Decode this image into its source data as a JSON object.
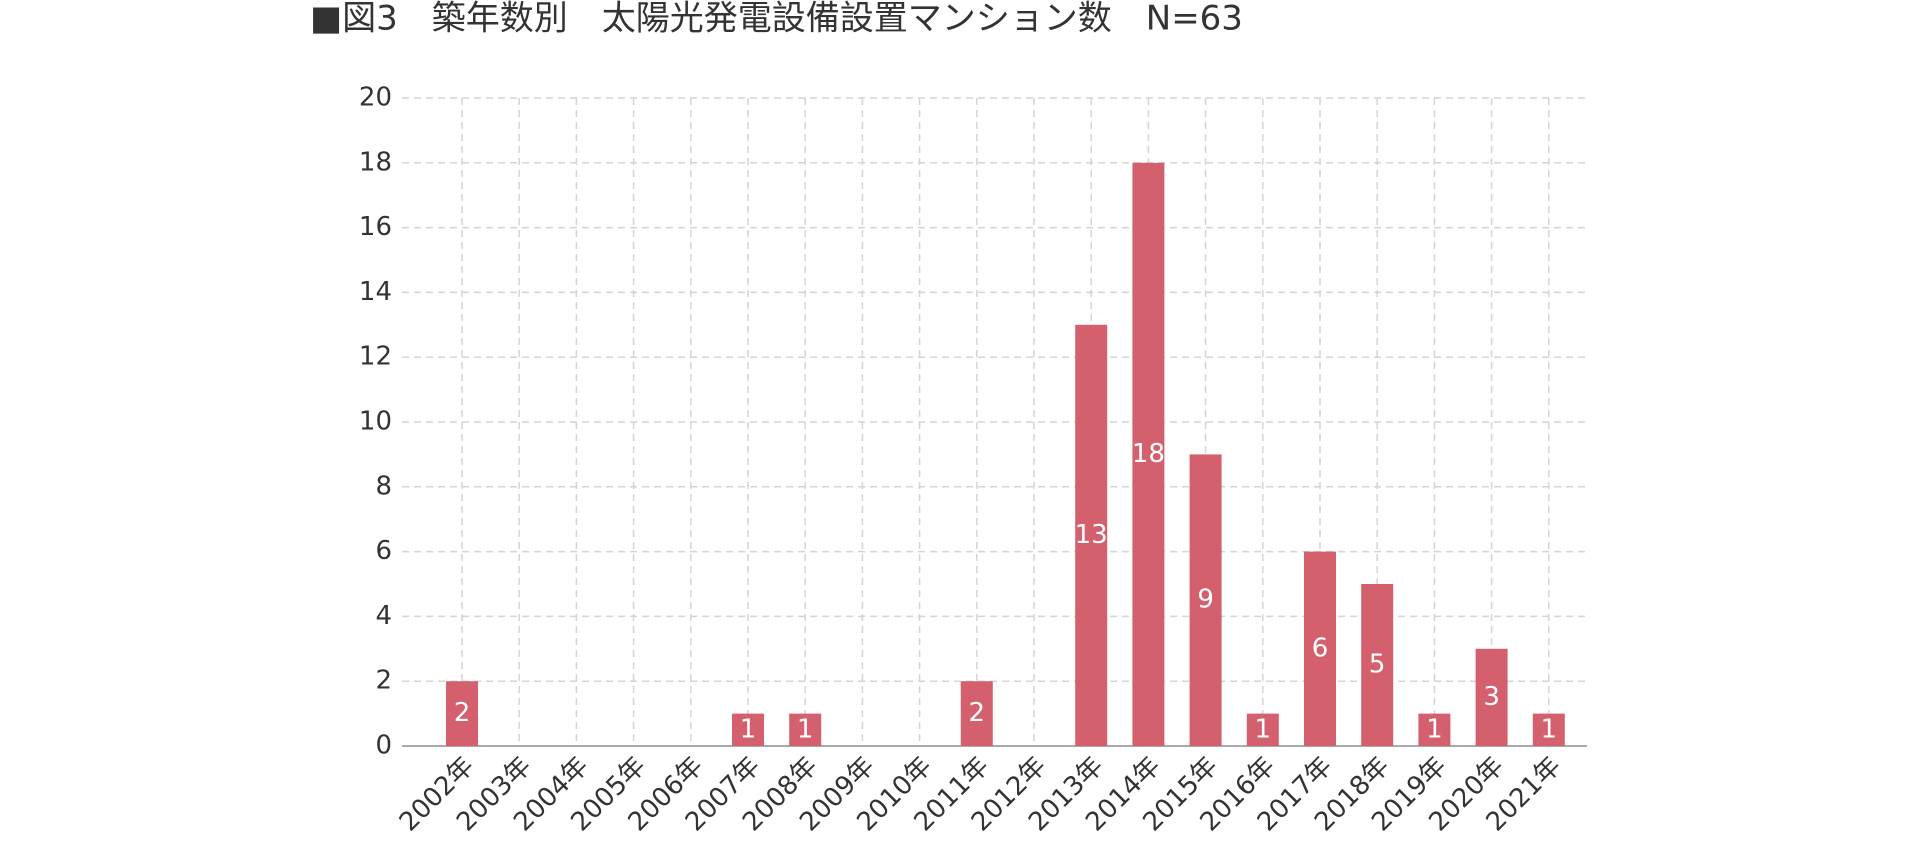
{
  "chart_data": {
    "type": "bar",
    "title": "■図3　築年数別　太陽光発電設備設置マンション数　N=63",
    "categories": [
      "2002年",
      "2003年",
      "2004年",
      "2005年",
      "2006年",
      "2007年",
      "2008年",
      "2009年",
      "2010年",
      "2011年",
      "2012年",
      "2013年",
      "2014年",
      "2015年",
      "2016年",
      "2017年",
      "2018年",
      "2019年",
      "2020年",
      "2021年"
    ],
    "values": [
      2,
      0,
      0,
      0,
      0,
      1,
      1,
      0,
      0,
      2,
      0,
      13,
      18,
      9,
      1,
      6,
      5,
      1,
      3,
      1
    ],
    "color": "#d4606e",
    "ylim": [
      0,
      20
    ],
    "yticks": [
      0,
      2,
      4,
      6,
      8,
      10,
      12,
      14,
      16,
      18,
      20
    ],
    "grid": true
  }
}
